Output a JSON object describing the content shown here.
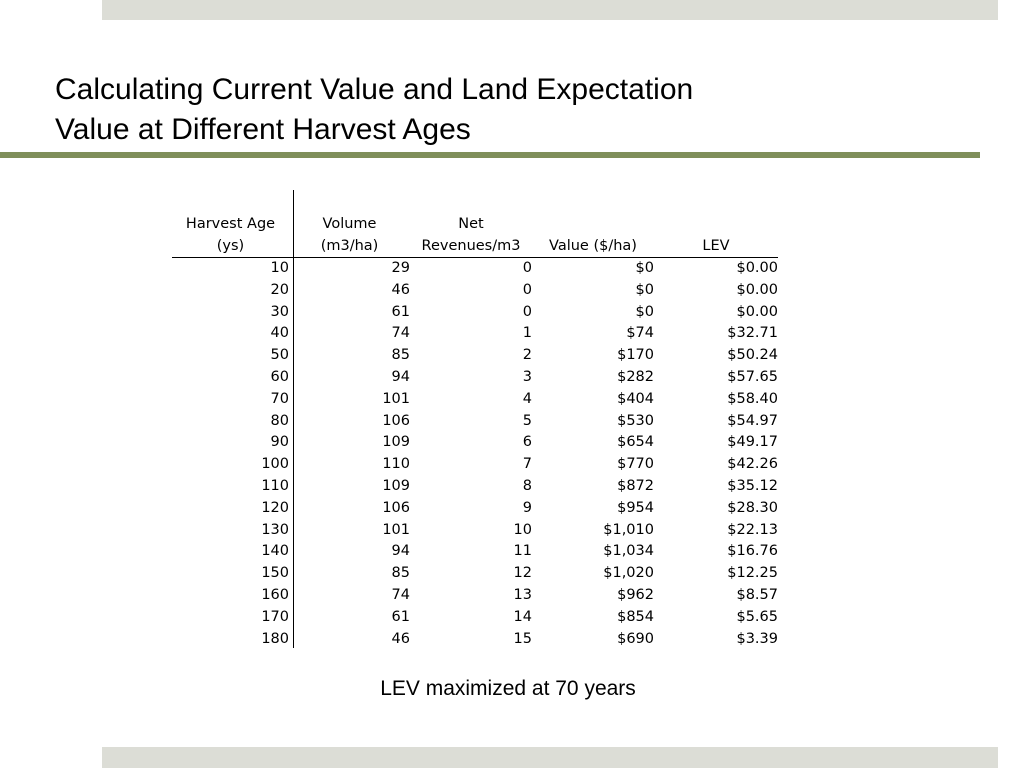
{
  "title": {
    "line1": "Calculating Current Value and Land Expectation",
    "line2": "Value at Different Harvest Ages"
  },
  "table": {
    "headers": [
      {
        "line1": "Harvest Age",
        "line2": "(ys)"
      },
      {
        "line1": "Volume",
        "line2": "(m3/ha)"
      },
      {
        "line1": "Net",
        "line2": "Revenues/m3"
      },
      {
        "line1": "",
        "line2": "Value ($/ha)"
      },
      {
        "line1": "",
        "line2": "LEV"
      }
    ],
    "rows": [
      [
        "10",
        "29",
        "0",
        "$0",
        "$0.00"
      ],
      [
        "20",
        "46",
        "0",
        "$0",
        "$0.00"
      ],
      [
        "30",
        "61",
        "0",
        "$0",
        "$0.00"
      ],
      [
        "40",
        "74",
        "1",
        "$74",
        "$32.71"
      ],
      [
        "50",
        "85",
        "2",
        "$170",
        "$50.24"
      ],
      [
        "60",
        "94",
        "3",
        "$282",
        "$57.65"
      ],
      [
        "70",
        "101",
        "4",
        "$404",
        "$58.40"
      ],
      [
        "80",
        "106",
        "5",
        "$530",
        "$54.97"
      ],
      [
        "90",
        "109",
        "6",
        "$654",
        "$49.17"
      ],
      [
        "100",
        "110",
        "7",
        "$770",
        "$42.26"
      ],
      [
        "110",
        "109",
        "8",
        "$872",
        "$35.12"
      ],
      [
        "120",
        "106",
        "9",
        "$954",
        "$28.30"
      ],
      [
        "130",
        "101",
        "10",
        "$1,010",
        "$22.13"
      ],
      [
        "140",
        "94",
        "11",
        "$1,034",
        "$16.76"
      ],
      [
        "150",
        "85",
        "12",
        "$1,020",
        "$12.25"
      ],
      [
        "160",
        "74",
        "13",
        "$962",
        "$8.57"
      ],
      [
        "170",
        "61",
        "14",
        "$854",
        "$5.65"
      ],
      [
        "180",
        "46",
        "15",
        "$690",
        "$3.39"
      ]
    ]
  },
  "caption": "LEV maximized at 70 years",
  "colors": {
    "accent_rule": "#7f8f5a",
    "bands": "#dcddd6"
  }
}
